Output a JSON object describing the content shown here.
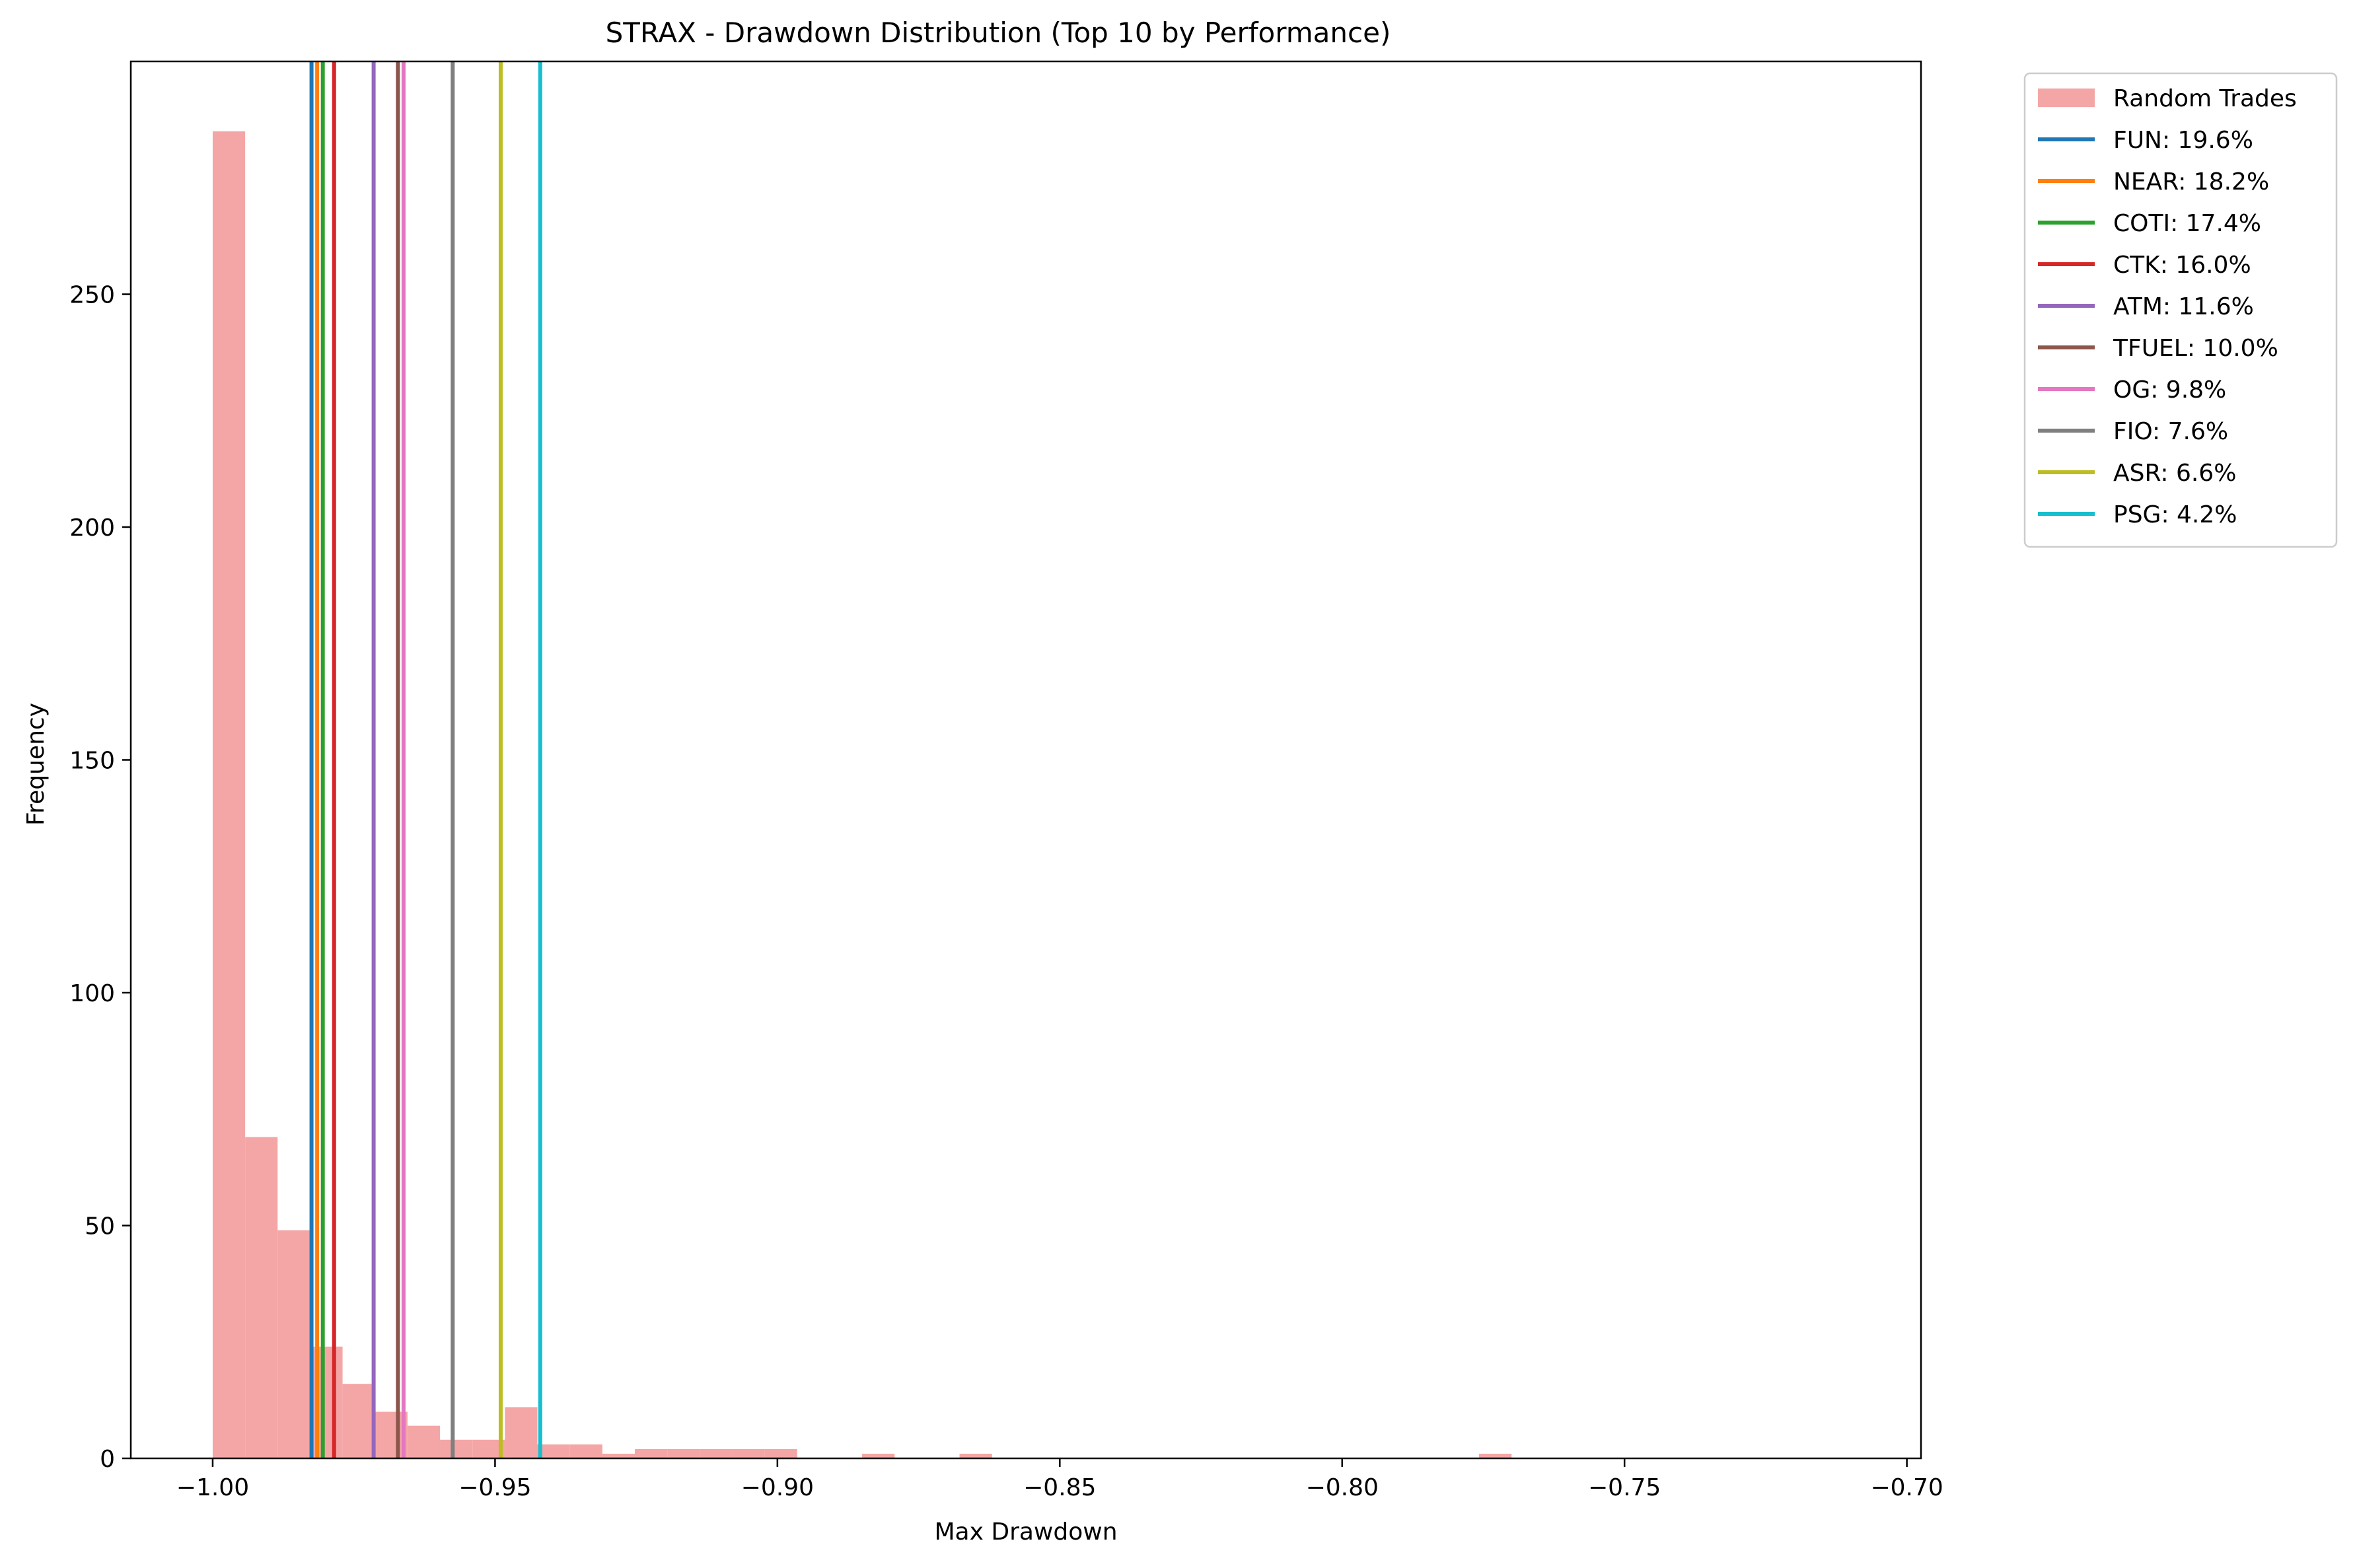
{
  "chart_data": {
    "type": "bar",
    "title": "STRAX - Drawdown Distribution (Top 10 by Performance)",
    "xlabel": "Max Drawdown",
    "ylabel": "Frequency",
    "xlim": [
      -1.0145,
      -0.6975
    ],
    "ylim": [
      0,
      300
    ],
    "grid": false,
    "legend_position": "outside-top-right",
    "x_ticks": [
      {
        "value": -1.0,
        "label": "−1.00"
      },
      {
        "value": -0.95,
        "label": "−0.95"
      },
      {
        "value": -0.9,
        "label": "−0.90"
      },
      {
        "value": -0.85,
        "label": "−0.85"
      },
      {
        "value": -0.8,
        "label": "−0.80"
      },
      {
        "value": -0.75,
        "label": "−0.75"
      },
      {
        "value": -0.7,
        "label": "−0.70"
      }
    ],
    "y_ticks": [
      {
        "value": 0,
        "label": "0"
      },
      {
        "value": 50,
        "label": "50"
      },
      {
        "value": 100,
        "label": "100"
      },
      {
        "value": 150,
        "label": "150"
      },
      {
        "value": 200,
        "label": "200"
      },
      {
        "value": 250,
        "label": "250"
      }
    ],
    "histogram": {
      "name": "Random Trades",
      "color": "#f4a6a6",
      "bin_start": -1.0,
      "bin_width": 0.00575,
      "counts": [
        285,
        69,
        49,
        24,
        16,
        10,
        7,
        4,
        4,
        11,
        3,
        3,
        1,
        2,
        2,
        2,
        2,
        2,
        0,
        0,
        1,
        0,
        0,
        1,
        0,
        0,
        0,
        0,
        0,
        0,
        0,
        0,
        0,
        0,
        0,
        0,
        0,
        0,
        0,
        1,
        0,
        0,
        0,
        0,
        0,
        0,
        0,
        0,
        0,
        0,
        0,
        0,
        0,
        0,
        0,
        0,
        0,
        0,
        0,
        0,
        0,
        0,
        0,
        0,
        0,
        0,
        0,
        0,
        0,
        0,
        1,
        0,
        0,
        0,
        0,
        0,
        0,
        0,
        0,
        0,
        0,
        0,
        0,
        0,
        0,
        0,
        0,
        0,
        0,
        0,
        0,
        0,
        0,
        0,
        0,
        0,
        0,
        0,
        0,
        0,
        0,
        0,
        0,
        0,
        0,
        1,
        0,
        0,
        0,
        0,
        0,
        0,
        0,
        0,
        0,
        0,
        0,
        0,
        0,
        0,
        0,
        0,
        0,
        0,
        0,
        0,
        1,
        0,
        0,
        0,
        0,
        0,
        0,
        0,
        0,
        0,
        0,
        0,
        0,
        0,
        0,
        0,
        0,
        0,
        0,
        0,
        0,
        0,
        0,
        0,
        0,
        0,
        0,
        0,
        0,
        0,
        0,
        0,
        0,
        0,
        0,
        0,
        0,
        0,
        0,
        0,
        0,
        0,
        0,
        0,
        0,
        0,
        0,
        0,
        0,
        0,
        0,
        0,
        0,
        0,
        0,
        0,
        0,
        0,
        0,
        1,
        0,
        0,
        0,
        0,
        0,
        0,
        0,
        0,
        0,
        0,
        0,
        0,
        0,
        0,
        0,
        0,
        0,
        0,
        0,
        0,
        0,
        0,
        0,
        0,
        0,
        0,
        0,
        0,
        0,
        0,
        0,
        0,
        0,
        0,
        0,
        0,
        0,
        0,
        0,
        0,
        0,
        0,
        0,
        0,
        0,
        0,
        0,
        0,
        0,
        0,
        0,
        0,
        0,
        0,
        0,
        0,
        0,
        0,
        0,
        0,
        0,
        0,
        0,
        0,
        0,
        0,
        0,
        0,
        0,
        0,
        0,
        0,
        0,
        0,
        0,
        0,
        0,
        0,
        0,
        0,
        0,
        0,
        0,
        0,
        0,
        0,
        0,
        0,
        0,
        0,
        0,
        0,
        0,
        0,
        0,
        0,
        0,
        1
      ]
    },
    "series": [
      {
        "name": "FUN",
        "label": "FUN: 19.6%",
        "x": -0.9825,
        "color": "#1f77b4"
      },
      {
        "name": "NEAR",
        "label": "NEAR: 18.2%",
        "x": -0.9815,
        "color": "#ff7f0e"
      },
      {
        "name": "COTI",
        "label": "COTI: 17.4%",
        "x": -0.9805,
        "color": "#2ca02c"
      },
      {
        "name": "CTK",
        "label": "CTK: 16.0%",
        "x": -0.9785,
        "color": "#d62728"
      },
      {
        "name": "ATM",
        "label": "ATM: 11.6%",
        "x": -0.9715,
        "color": "#9467bd"
      },
      {
        "name": "TFUEL",
        "label": "TFUEL: 10.0%",
        "x": -0.9672,
        "color": "#8c564b"
      },
      {
        "name": "OG",
        "label": "OG: 9.8%",
        "x": -0.9662,
        "color": "#e377c2"
      },
      {
        "name": "FIO",
        "label": "FIO: 7.6%",
        "x": -0.9575,
        "color": "#7f7f7f"
      },
      {
        "name": "ASR",
        "label": "ASR: 6.6%",
        "x": -0.949,
        "color": "#bcbd22"
      },
      {
        "name": "PSG",
        "label": "PSG: 4.2%",
        "x": -0.942,
        "color": "#17becf"
      }
    ]
  }
}
